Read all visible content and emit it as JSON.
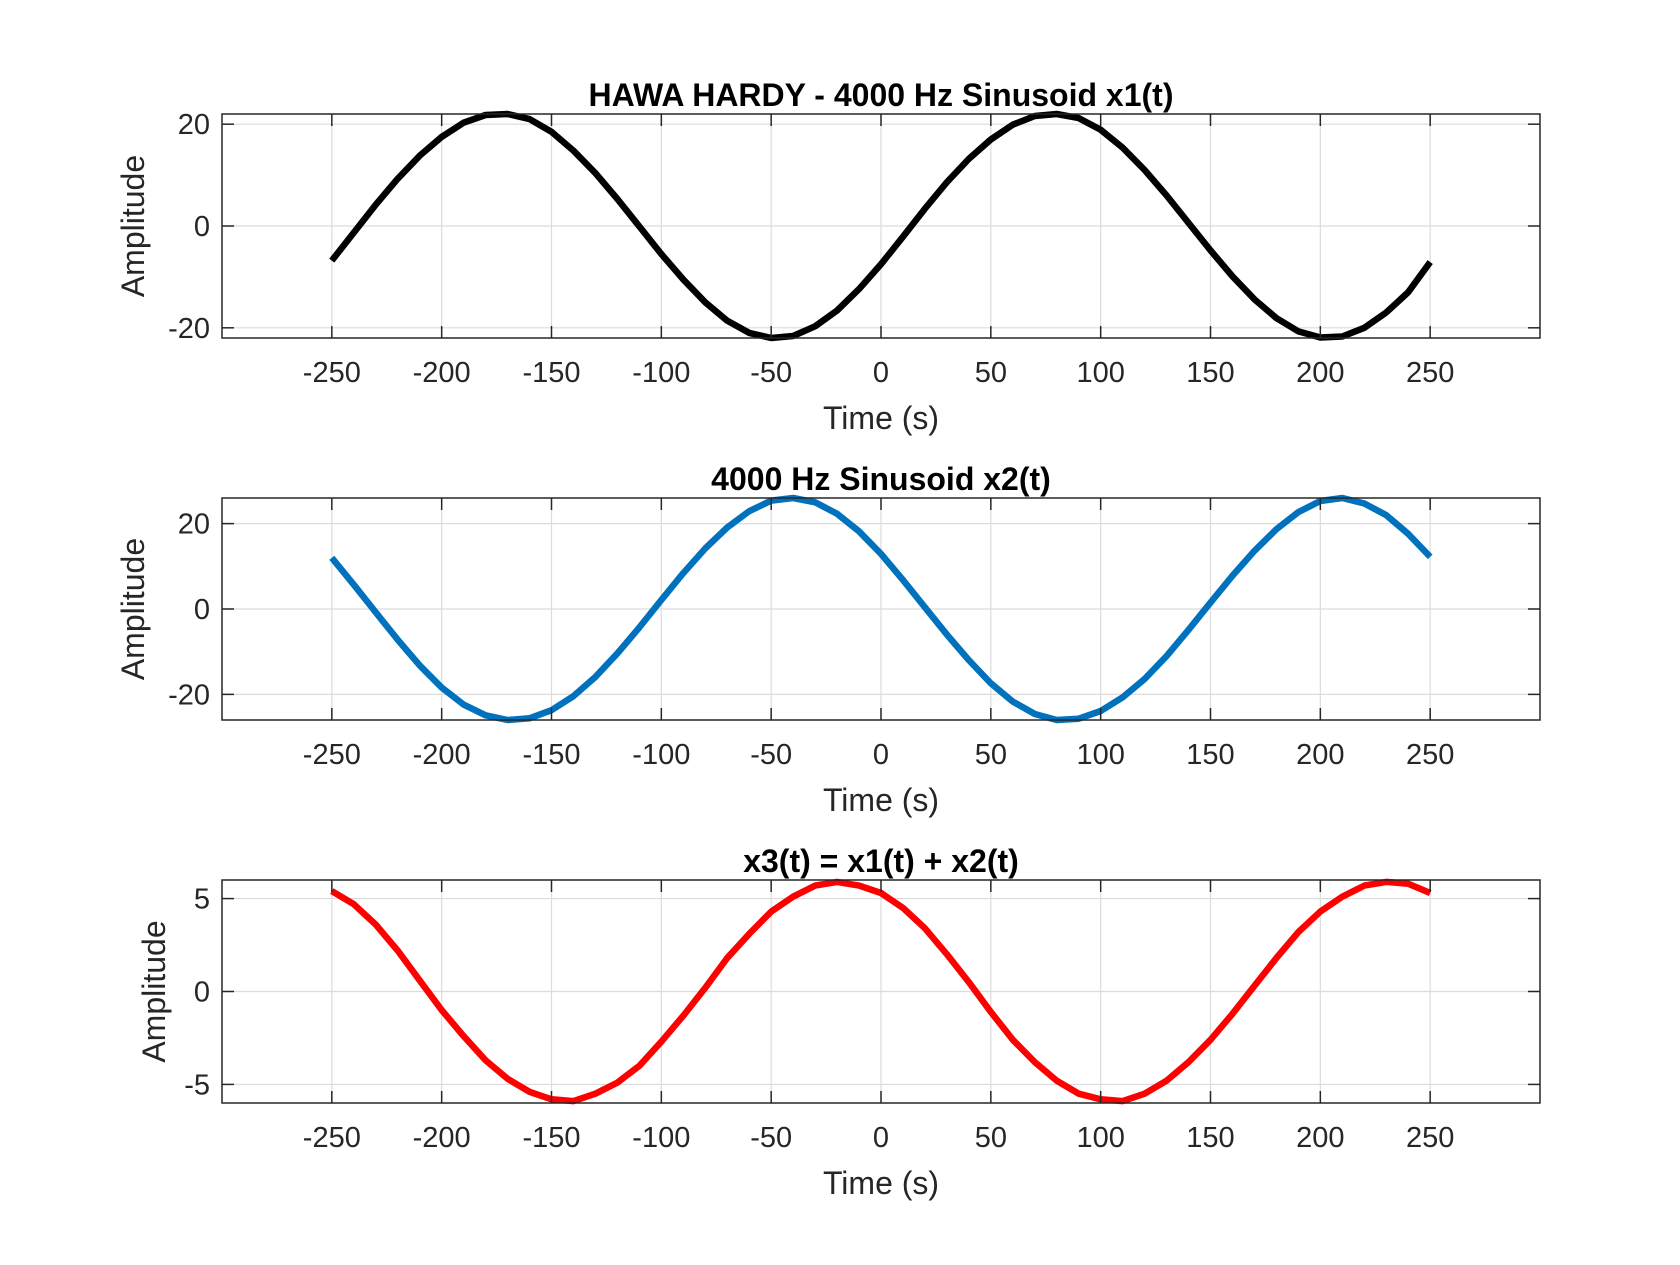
{
  "chart_data": [
    {
      "type": "line",
      "title": "HAWA HARDY - 4000 Hz Sinusoid x1(t)",
      "xlabel": "Time (s)",
      "ylabel": "Amplitude",
      "xlim": [
        -300,
        300
      ],
      "ylim": [
        -22,
        22
      ],
      "xticks": [
        -250,
        -200,
        -150,
        -100,
        -50,
        0,
        50,
        100,
        150,
        200,
        250
      ],
      "xtick_labels": [
        "-250",
        "-200",
        "-150",
        "-100",
        "-50",
        "0",
        "50",
        "100",
        "150",
        "200",
        "250"
      ],
      "yticks": [
        -20,
        0,
        20
      ],
      "ytick_labels": [
        "-20",
        "0",
        "20"
      ],
      "grid": true,
      "color": "#000000",
      "series": [
        {
          "x": [
            -250,
            -240,
            -230,
            -220,
            -210,
            -200,
            -190,
            -180,
            -170,
            -160,
            -150,
            -140,
            -130,
            -120,
            -110,
            -100,
            -90,
            -80,
            -70,
            -60,
            -50,
            -40,
            -30,
            -20,
            -10,
            0,
            10,
            20,
            30,
            40,
            50,
            60,
            70,
            80,
            90,
            100,
            110,
            120,
            130,
            140,
            150,
            160,
            170,
            180,
            190,
            200,
            210,
            220,
            230,
            240,
            250
          ],
          "y": [
            -6.8,
            -1.3,
            4.2,
            9.3,
            13.8,
            17.5,
            20.3,
            21.8,
            22.0,
            21.0,
            18.5,
            14.8,
            10.4,
            5.3,
            -0.1,
            -5.5,
            -10.5,
            -15.0,
            -18.6,
            -21.0,
            -22.0,
            -21.6,
            -19.7,
            -16.6,
            -12.4,
            -7.5,
            -2.1,
            3.4,
            8.6,
            13.2,
            17.0,
            19.9,
            21.6,
            22.0,
            21.2,
            18.9,
            15.4,
            11.0,
            6.0,
            0.6,
            -4.8,
            -9.9,
            -14.4,
            -18.1,
            -20.7,
            -21.9,
            -21.7,
            -20.0,
            -17.0,
            -13.0,
            -7.1
          ]
        }
      ]
    },
    {
      "type": "line",
      "title": "4000 Hz Sinusoid x2(t)",
      "xlabel": "Time (s)",
      "ylabel": "Amplitude",
      "xlim": [
        -300,
        300
      ],
      "ylim": [
        -26,
        26
      ],
      "xticks": [
        -250,
        -200,
        -150,
        -100,
        -50,
        0,
        50,
        100,
        150,
        200,
        250
      ],
      "xtick_labels": [
        "-250",
        "-200",
        "-150",
        "-100",
        "-50",
        "0",
        "50",
        "100",
        "150",
        "200",
        "250"
      ],
      "yticks": [
        -20,
        0,
        20
      ],
      "ytick_labels": [
        "-20",
        "0",
        "20"
      ],
      "grid": true,
      "color": "#0072BD",
      "series": [
        {
          "x": [
            -250,
            -240,
            -230,
            -220,
            -210,
            -200,
            -190,
            -180,
            -170,
            -160,
            -150,
            -140,
            -130,
            -120,
            -110,
            -100,
            -90,
            -80,
            -70,
            -60,
            -50,
            -40,
            -30,
            -20,
            -10,
            0,
            10,
            20,
            30,
            40,
            50,
            60,
            70,
            80,
            90,
            100,
            110,
            120,
            130,
            140,
            150,
            160,
            170,
            180,
            190,
            200,
            210,
            220,
            230,
            240,
            250
          ],
          "y": [
            12.0,
            5.7,
            -0.8,
            -7.2,
            -13.2,
            -18.4,
            -22.4,
            -24.9,
            -26.0,
            -25.6,
            -23.7,
            -20.4,
            -15.9,
            -10.4,
            -4.3,
            2.1,
            8.4,
            14.2,
            19.1,
            22.9,
            25.4,
            26.0,
            25.0,
            22.3,
            18.2,
            12.9,
            6.8,
            0.4,
            -6.0,
            -12.0,
            -17.4,
            -21.7,
            -24.6,
            -26.0,
            -25.7,
            -23.9,
            -20.7,
            -16.4,
            -11.0,
            -4.9,
            1.5,
            7.8,
            13.6,
            18.7,
            22.7,
            25.3,
            26.0,
            24.7,
            22.0,
            17.6,
            12.2
          ]
        }
      ]
    },
    {
      "type": "line",
      "title": "x3(t) = x1(t) + x2(t)",
      "xlabel": "Time (s)",
      "ylabel": "Amplitude",
      "xlim": [
        -300,
        300
      ],
      "ylim": [
        -6,
        6
      ],
      "xticks": [
        -250,
        -200,
        -150,
        -100,
        -50,
        0,
        50,
        100,
        150,
        200,
        250
      ],
      "xtick_labels": [
        "-250",
        "-200",
        "-150",
        "-100",
        "-50",
        "0",
        "50",
        "100",
        "150",
        "200",
        "250"
      ],
      "yticks": [
        -5,
        0,
        5
      ],
      "ytick_labels": [
        "-5",
        "0",
        "5"
      ],
      "grid": true,
      "color": "#FF0000",
      "series": [
        {
          "x": [
            -250,
            -240,
            -230,
            -220,
            -210,
            -200,
            -190,
            -180,
            -170,
            -160,
            -150,
            -140,
            -130,
            -120,
            -110,
            -100,
            -90,
            -80,
            -70,
            -60,
            -50,
            -40,
            -30,
            -20,
            -10,
            0,
            10,
            20,
            30,
            40,
            50,
            60,
            70,
            80,
            90,
            100,
            110,
            120,
            130,
            140,
            150,
            160,
            170,
            180,
            190,
            200,
            210,
            220,
            230,
            240,
            250
          ],
          "y": [
            5.4,
            4.7,
            3.6,
            2.2,
            0.6,
            -1.0,
            -2.4,
            -3.7,
            -4.7,
            -5.4,
            -5.8,
            -5.9,
            -5.5,
            -4.9,
            -4.0,
            -2.7,
            -1.3,
            0.2,
            1.8,
            3.1,
            4.3,
            5.1,
            5.7,
            5.9,
            5.7,
            5.3,
            4.5,
            3.4,
            2.0,
            0.5,
            -1.1,
            -2.6,
            -3.8,
            -4.8,
            -5.5,
            -5.8,
            -5.9,
            -5.5,
            -4.8,
            -3.8,
            -2.6,
            -1.2,
            0.3,
            1.8,
            3.2,
            4.3,
            5.1,
            5.7,
            5.9,
            5.8,
            5.3
          ]
        }
      ]
    }
  ]
}
